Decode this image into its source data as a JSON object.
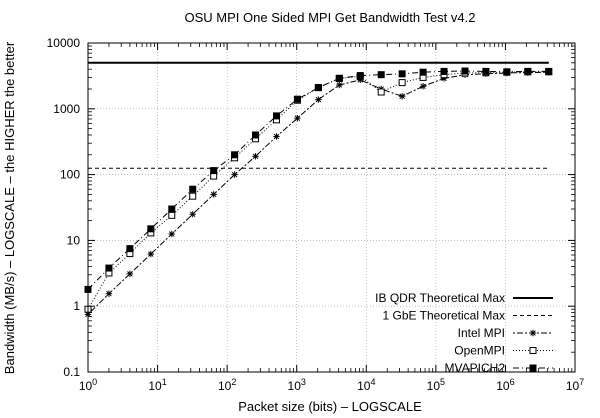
{
  "chart_data": {
    "type": "line",
    "title": "OSU MPI One Sided MPI Get Bandwidth Test v4.2",
    "xlabel": "Packet size (bits) – LOGSCALE",
    "ylabel": "Bandwidth (MB/s) – LOGSCALE – the HIGHER the better",
    "x_scale": "log",
    "y_scale": "log",
    "xlim": [
      1,
      10000000
    ],
    "ylim": [
      0.1,
      10000
    ],
    "grid": true,
    "legend_position": "bottom-right",
    "x_ticks": [
      {
        "value": 1,
        "base": "10",
        "exp": "0"
      },
      {
        "value": 10,
        "base": "10",
        "exp": "1"
      },
      {
        "value": 100,
        "base": "10",
        "exp": "2"
      },
      {
        "value": 1000,
        "base": "10",
        "exp": "3"
      },
      {
        "value": 10000,
        "base": "10",
        "exp": "4"
      },
      {
        "value": 100000,
        "base": "10",
        "exp": "5"
      },
      {
        "value": 1000000,
        "base": "10",
        "exp": "6"
      },
      {
        "value": 10000000,
        "base": "10",
        "exp": "7"
      }
    ],
    "y_ticks": [
      {
        "value": 0.1,
        "label": "0.1"
      },
      {
        "value": 1,
        "label": "1"
      },
      {
        "value": 10,
        "label": "10"
      },
      {
        "value": 100,
        "label": "100"
      },
      {
        "value": 1000,
        "label": "1000"
      },
      {
        "value": 10000,
        "label": "10000"
      }
    ],
    "reference_lines": [
      {
        "name": "IB QDR Theoretical Max",
        "y": 5000,
        "x_range": [
          1,
          4194304
        ],
        "style": "solid"
      },
      {
        "name": "1 GbE  Theoretical Max",
        "y": 125,
        "x_range": [
          1,
          4194304
        ],
        "style": "dashed"
      }
    ],
    "x": [
      1,
      2,
      4,
      8,
      16,
      32,
      64,
      128,
      256,
      512,
      1024,
      2048,
      4096,
      8192,
      16384,
      32768,
      65536,
      131072,
      262144,
      524288,
      1048576,
      2097152,
      4194304
    ],
    "series": [
      {
        "name": "Intel MPI",
        "marker": "star",
        "dash": "2,2,6,2",
        "values": [
          0.75,
          1.55,
          3.1,
          6.2,
          12.5,
          25,
          50,
          100,
          190,
          380,
          720,
          1380,
          2300,
          2750,
          2000,
          1550,
          2200,
          2900,
          3300,
          3400,
          3500,
          3550,
          3600
        ]
      },
      {
        "name": "OpenMPI",
        "marker": "open-square",
        "dash": "1,2",
        "values": [
          0.9,
          3.2,
          6.3,
          13,
          24,
          47,
          95,
          180,
          350,
          680,
          1350,
          2100,
          2900,
          3100,
          1800,
          2500,
          3000,
          3300,
          3500,
          3550,
          3600,
          3650,
          3650
        ]
      },
      {
        "name": "MVAPICH2",
        "marker": "filled-square",
        "dash": "6,3,1,3",
        "values": [
          1.8,
          3.8,
          7.5,
          15,
          30,
          60,
          115,
          200,
          400,
          780,
          1400,
          2100,
          2900,
          3200,
          3300,
          3400,
          3600,
          3700,
          3750,
          3700,
          3650,
          3700,
          3700
        ]
      }
    ]
  }
}
